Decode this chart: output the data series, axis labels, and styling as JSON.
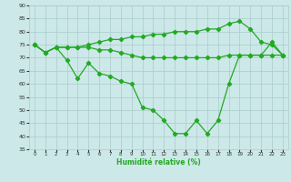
{
  "xlabel": "Humidité relative (%)",
  "xlim": [
    -0.5,
    23.5
  ],
  "ylim": [
    35,
    90
  ],
  "yticks": [
    35,
    40,
    45,
    50,
    55,
    60,
    65,
    70,
    75,
    80,
    85,
    90
  ],
  "xticks": [
    0,
    1,
    2,
    3,
    4,
    5,
    6,
    7,
    8,
    9,
    10,
    11,
    12,
    13,
    14,
    15,
    16,
    17,
    18,
    19,
    20,
    21,
    22,
    23
  ],
  "bg_color": "#cce8e8",
  "grid_color": "#aacccc",
  "line_color": "#22aa22",
  "marker": "D",
  "markersize": 2.2,
  "linewidth": 0.9,
  "line1": [
    75,
    72,
    74,
    69,
    62,
    68,
    64,
    63,
    61,
    60,
    51,
    50,
    46,
    41,
    41,
    46,
    41,
    46,
    60,
    71,
    71,
    71,
    76,
    71
  ],
  "line2": [
    75,
    72,
    74,
    74,
    74,
    74,
    73,
    73,
    72,
    71,
    70,
    70,
    70,
    70,
    70,
    70,
    70,
    70,
    71,
    71,
    71,
    71,
    71,
    71
  ],
  "line3": [
    75,
    72,
    74,
    74,
    74,
    75,
    76,
    77,
    77,
    78,
    78,
    79,
    79,
    80,
    80,
    80,
    81,
    81,
    83,
    84,
    81,
    76,
    75,
    71
  ]
}
